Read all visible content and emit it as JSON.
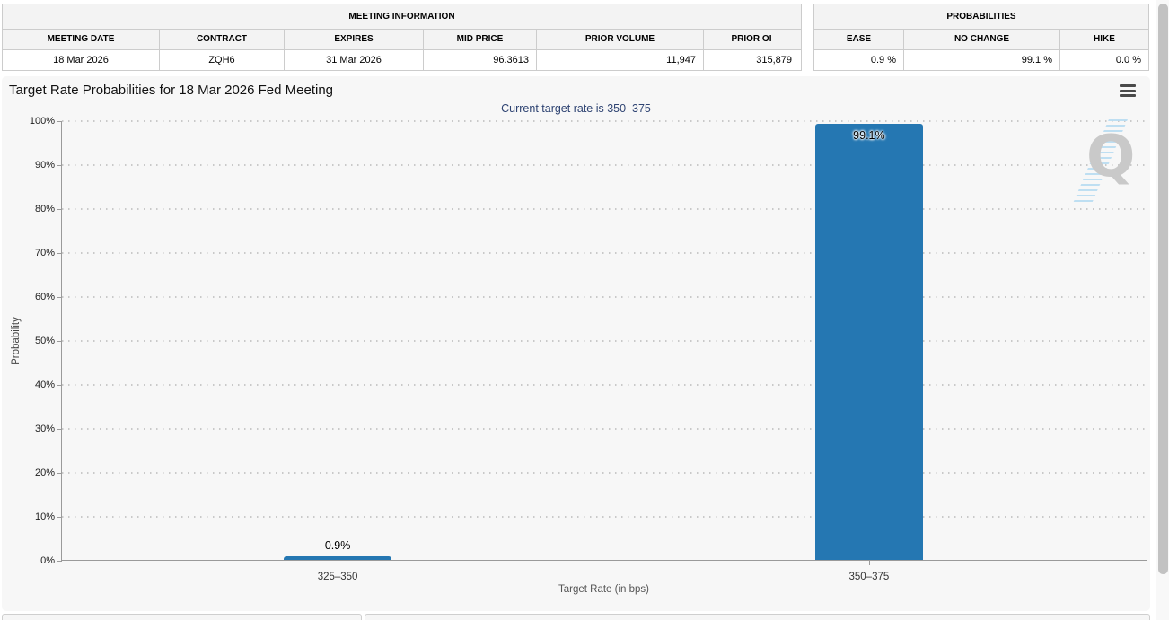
{
  "meeting_information": {
    "title": "MEETING INFORMATION",
    "columns": [
      "MEETING DATE",
      "CONTRACT",
      "EXPIRES",
      "MID PRICE",
      "PRIOR VOLUME",
      "PRIOR OI"
    ],
    "values": [
      "18 Mar 2026",
      "ZQH6",
      "31 Mar 2026",
      "96.3613",
      "11,947",
      "315,879"
    ]
  },
  "probabilities": {
    "title": "PROBABILITIES",
    "columns": [
      "EASE",
      "NO CHANGE",
      "HIKE"
    ],
    "values": [
      "0.9 %",
      "99.1 %",
      "0.0 %"
    ]
  },
  "chart_data": {
    "type": "bar",
    "title": "Target Rate Probabilities for 18 Mar 2026 Fed Meeting",
    "subtitle": "Current target rate is 350–375",
    "categories": [
      "325–350",
      "350–375"
    ],
    "values": [
      0.9,
      99.1
    ],
    "bar_labels": [
      "0.9%",
      "99.1%"
    ],
    "xlabel": "Target Rate (in bps)",
    "ylabel": "Probability",
    "ylim": [
      0,
      100
    ],
    "ytick_step": 10,
    "yticks": [
      "0%",
      "10%",
      "20%",
      "30%",
      "40%",
      "50%",
      "60%",
      "70%",
      "80%",
      "90%",
      "100%"
    ],
    "bar_color": "#2577b2",
    "grid": "dotted horizontal",
    "legend": "none"
  },
  "watermark": {
    "letter": "Q"
  },
  "icons": {
    "menu": "hamburger-icon"
  }
}
